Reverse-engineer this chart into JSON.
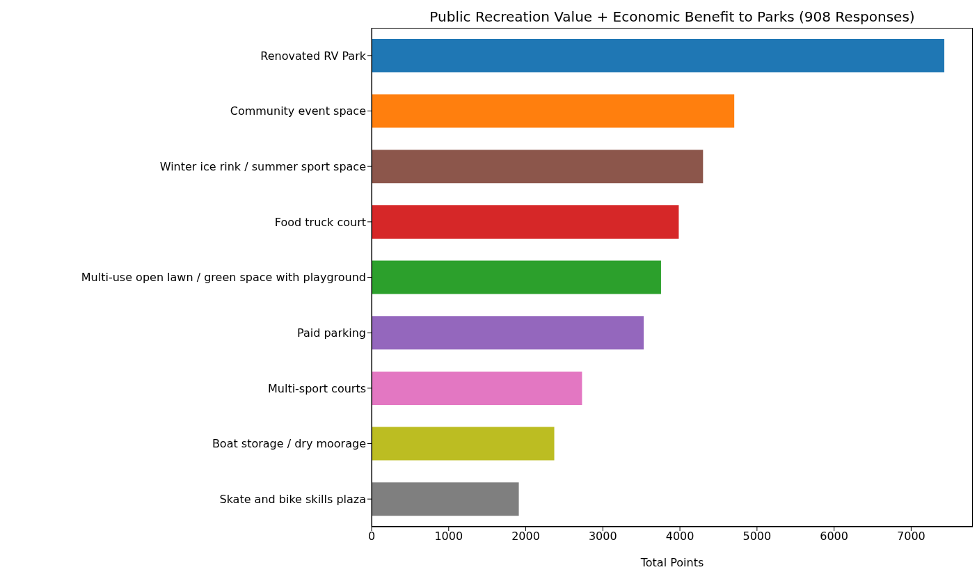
{
  "chart_data": {
    "type": "bar",
    "orientation": "horizontal",
    "title": "Public Recreation Value + Economic Benefit to Parks (908 Responses)",
    "xlabel": "Total Points",
    "categories": [
      "Renovated RV Park",
      "Community event space",
      "Winter ice rink / summer sport space",
      "Food truck court",
      "Multi-use open lawn / green space with playground",
      "Paid parking",
      "Multi-sport courts",
      "Boat storage / dry moorage",
      "Skate and bike skills plaza"
    ],
    "values": [
      7430,
      4705,
      4300,
      3985,
      3755,
      3530,
      2730,
      2370,
      1910
    ],
    "colors": [
      "#1f77b4",
      "#ff7f0e",
      "#8c564b",
      "#d62728",
      "#2ca02c",
      "#9467bd",
      "#e377c2",
      "#bcbd22",
      "#7f7f7f"
    ],
    "xlim": [
      0,
      7800
    ],
    "xticks": [
      0,
      1000,
      2000,
      3000,
      4000,
      5000,
      6000,
      7000
    ],
    "grid": false,
    "legend": false
  }
}
